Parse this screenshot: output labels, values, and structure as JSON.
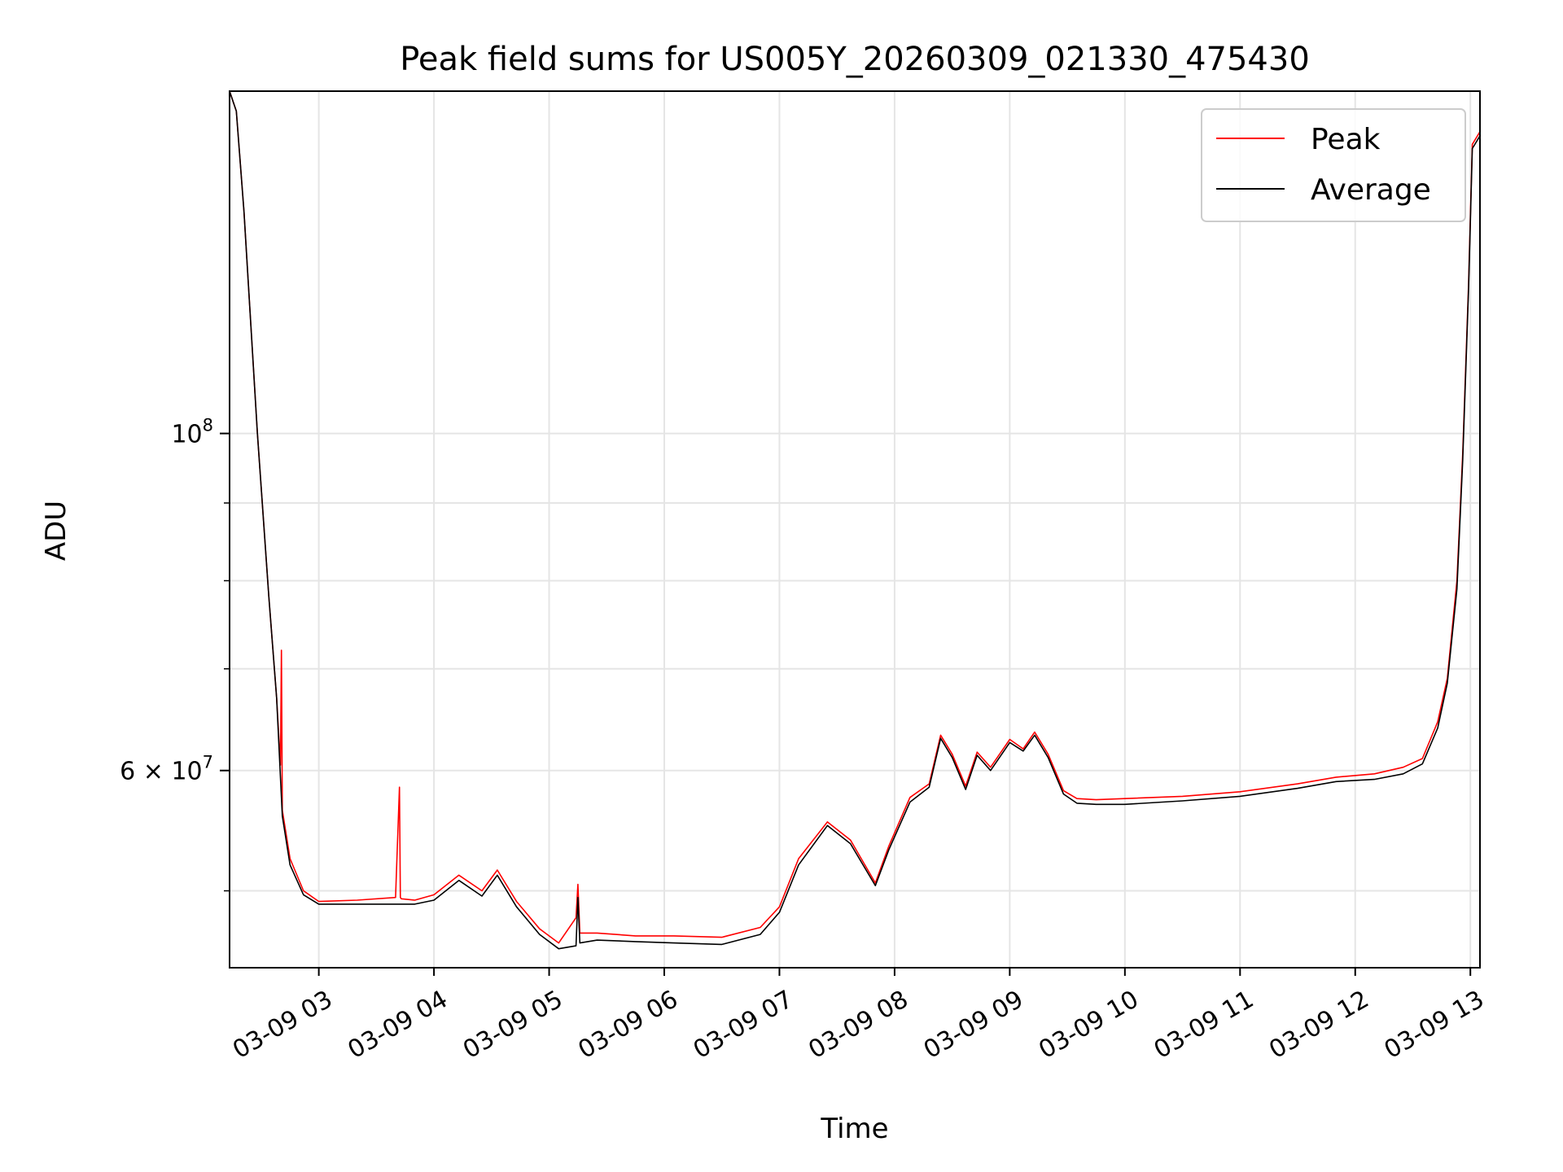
{
  "chart_data": {
    "type": "line",
    "title": "Peak field sums for US005Y_20260309_021330_475430",
    "xlabel": "Time",
    "ylabel": "ADU",
    "yscale": "log",
    "grid": true,
    "legend_position": "top-right",
    "xlim": [
      "2026-03-09T02:13:30",
      "2026-03-09T13:05:00"
    ],
    "ylim": [
      44500000,
      168000000
    ],
    "x_ticks": [
      {
        "value": "2026-03-09T03:00:00",
        "label": "03-09 03"
      },
      {
        "value": "2026-03-09T04:00:00",
        "label": "03-09 04"
      },
      {
        "value": "2026-03-09T05:00:00",
        "label": "03-09 05"
      },
      {
        "value": "2026-03-09T06:00:00",
        "label": "03-09 06"
      },
      {
        "value": "2026-03-09T07:00:00",
        "label": "03-09 07"
      },
      {
        "value": "2026-03-09T08:00:00",
        "label": "03-09 08"
      },
      {
        "value": "2026-03-09T09:00:00",
        "label": "03-09 09"
      },
      {
        "value": "2026-03-09T10:00:00",
        "label": "03-09 10"
      },
      {
        "value": "2026-03-09T11:00:00",
        "label": "03-09 11"
      },
      {
        "value": "2026-03-09T12:00:00",
        "label": "03-09 12"
      },
      {
        "value": "2026-03-09T13:00:00",
        "label": "03-09 13"
      }
    ],
    "y_major_ticks": [
      {
        "value": 100000000,
        "base": "10",
        "exp": "8"
      },
      {
        "value": 60000000,
        "mant": "6",
        "base": "10",
        "exp": "7"
      }
    ],
    "y_minor_ticks": [
      50000000,
      70000000,
      80000000,
      90000000
    ],
    "series": [
      {
        "name": "Peak",
        "color": "#ff0000",
        "x": [
          "2026-03-09T02:13:30",
          "2026-03-09T02:17:00",
          "2026-03-09T02:21:00",
          "2026-03-09T02:28:00",
          "2026-03-09T02:34:00",
          "2026-03-09T02:38:00",
          "2026-03-09T02:40:00",
          "2026-03-09T02:40:30",
          "2026-03-09T02:41:00",
          "2026-03-09T02:45:00",
          "2026-03-09T02:52:00",
          "2026-03-09T03:00:00",
          "2026-03-09T03:20:00",
          "2026-03-09T03:40:00",
          "2026-03-09T03:42:00",
          "2026-03-09T03:42:30",
          "2026-03-09T03:43:00",
          "2026-03-09T03:50:00",
          "2026-03-09T04:00:00",
          "2026-03-09T04:13:00",
          "2026-03-09T04:25:00",
          "2026-03-09T04:33:00",
          "2026-03-09T04:43:00",
          "2026-03-09T04:55:00",
          "2026-03-09T05:05:00",
          "2026-03-09T05:14:00",
          "2026-03-09T05:15:00",
          "2026-03-09T05:16:00",
          "2026-03-09T05:25:00",
          "2026-03-09T05:45:00",
          "2026-03-09T06:05:00",
          "2026-03-09T06:30:00",
          "2026-03-09T06:50:00",
          "2026-03-09T07:00:00",
          "2026-03-09T07:10:00",
          "2026-03-09T07:25:00",
          "2026-03-09T07:37:00",
          "2026-03-09T07:50:00",
          "2026-03-09T07:57:00",
          "2026-03-09T08:08:00",
          "2026-03-09T08:18:00",
          "2026-03-09T08:24:00",
          "2026-03-09T08:30:00",
          "2026-03-09T08:37:00",
          "2026-03-09T08:43:00",
          "2026-03-09T08:50:00",
          "2026-03-09T09:00:00",
          "2026-03-09T09:07:00",
          "2026-03-09T09:13:00",
          "2026-03-09T09:20:00",
          "2026-03-09T09:28:00",
          "2026-03-09T09:35:00",
          "2026-03-09T09:45:00",
          "2026-03-09T10:00:00",
          "2026-03-09T10:30:00",
          "2026-03-09T11:00:00",
          "2026-03-09T11:30:00",
          "2026-03-09T11:50:00",
          "2026-03-09T12:10:00",
          "2026-03-09T12:25:00",
          "2026-03-09T12:35:00",
          "2026-03-09T12:43:00",
          "2026-03-09T12:48:00",
          "2026-03-09T12:53:00",
          "2026-03-09T12:56:00",
          "2026-03-09T12:59:00",
          "2026-03-09T13:01:00",
          "2026-03-09T13:05:00"
        ],
        "y": [
          168000000,
          163000000,
          140000000,
          100000000,
          78000000,
          67000000,
          60500000,
          72000000,
          56500000,
          52500000,
          50000000,
          49200000,
          49300000,
          49500000,
          58500000,
          49500000,
          49400000,
          49300000,
          49700000,
          51200000,
          50000000,
          51600000,
          49200000,
          47200000,
          46200000,
          48000000,
          50500000,
          46900000,
          46900000,
          46700000,
          46700000,
          46600000,
          47300000,
          48800000,
          52500000,
          55500000,
          54000000,
          50600000,
          53500000,
          57600000,
          58800000,
          63300000,
          61500000,
          58600000,
          61700000,
          60300000,
          62900000,
          62000000,
          63600000,
          61500000,
          58200000,
          57500000,
          57400000,
          57500000,
          57700000,
          58100000,
          58800000,
          59400000,
          59700000,
          60300000,
          61100000,
          64600000,
          69000000,
          80000000,
          97000000,
          125000000,
          155000000,
          158000000
        ]
      },
      {
        "name": "Average",
        "color": "#000000",
        "x": [
          "2026-03-09T02:13:30",
          "2026-03-09T02:17:00",
          "2026-03-09T02:21:00",
          "2026-03-09T02:28:00",
          "2026-03-09T02:34:00",
          "2026-03-09T02:38:00",
          "2026-03-09T02:41:00",
          "2026-03-09T02:45:00",
          "2026-03-09T02:52:00",
          "2026-03-09T03:00:00",
          "2026-03-09T03:20:00",
          "2026-03-09T03:43:00",
          "2026-03-09T03:50:00",
          "2026-03-09T04:00:00",
          "2026-03-09T04:13:00",
          "2026-03-09T04:25:00",
          "2026-03-09T04:33:00",
          "2026-03-09T04:43:00",
          "2026-03-09T04:55:00",
          "2026-03-09T05:05:00",
          "2026-03-09T05:14:00",
          "2026-03-09T05:15:00",
          "2026-03-09T05:16:00",
          "2026-03-09T05:25:00",
          "2026-03-09T05:45:00",
          "2026-03-09T06:05:00",
          "2026-03-09T06:30:00",
          "2026-03-09T06:50:00",
          "2026-03-09T07:00:00",
          "2026-03-09T07:10:00",
          "2026-03-09T07:25:00",
          "2026-03-09T07:37:00",
          "2026-03-09T07:50:00",
          "2026-03-09T07:57:00",
          "2026-03-09T08:08:00",
          "2026-03-09T08:18:00",
          "2026-03-09T08:24:00",
          "2026-03-09T08:30:00",
          "2026-03-09T08:37:00",
          "2026-03-09T08:43:00",
          "2026-03-09T08:50:00",
          "2026-03-09T09:00:00",
          "2026-03-09T09:07:00",
          "2026-03-09T09:13:00",
          "2026-03-09T09:20:00",
          "2026-03-09T09:28:00",
          "2026-03-09T09:35:00",
          "2026-03-09T09:45:00",
          "2026-03-09T10:00:00",
          "2026-03-09T10:30:00",
          "2026-03-09T11:00:00",
          "2026-03-09T11:30:00",
          "2026-03-09T11:50:00",
          "2026-03-09T12:10:00",
          "2026-03-09T12:25:00",
          "2026-03-09T12:35:00",
          "2026-03-09T12:43:00",
          "2026-03-09T12:48:00",
          "2026-03-09T12:53:00",
          "2026-03-09T12:56:00",
          "2026-03-09T12:59:00",
          "2026-03-09T13:01:00",
          "2026-03-09T13:05:00"
        ],
        "y": [
          168000000,
          163000000,
          140000000,
          100000000,
          78000000,
          67000000,
          56000000,
          52000000,
          49700000,
          49000000,
          49000000,
          49000000,
          49000000,
          49300000,
          50800000,
          49600000,
          51200000,
          48800000,
          46800000,
          45800000,
          46000000,
          49500000,
          46200000,
          46400000,
          46300000,
          46200000,
          46100000,
          46800000,
          48400000,
          52000000,
          55200000,
          53700000,
          50400000,
          53200000,
          57200000,
          58500000,
          63000000,
          61200000,
          58300000,
          61400000,
          60000000,
          62600000,
          61800000,
          63300000,
          61200000,
          57900000,
          57100000,
          57000000,
          57000000,
          57300000,
          57700000,
          58400000,
          59000000,
          59200000,
          59700000,
          60600000,
          64000000,
          68500000,
          79000000,
          96000000,
          124000000,
          154000000,
          157000000
        ]
      }
    ]
  }
}
